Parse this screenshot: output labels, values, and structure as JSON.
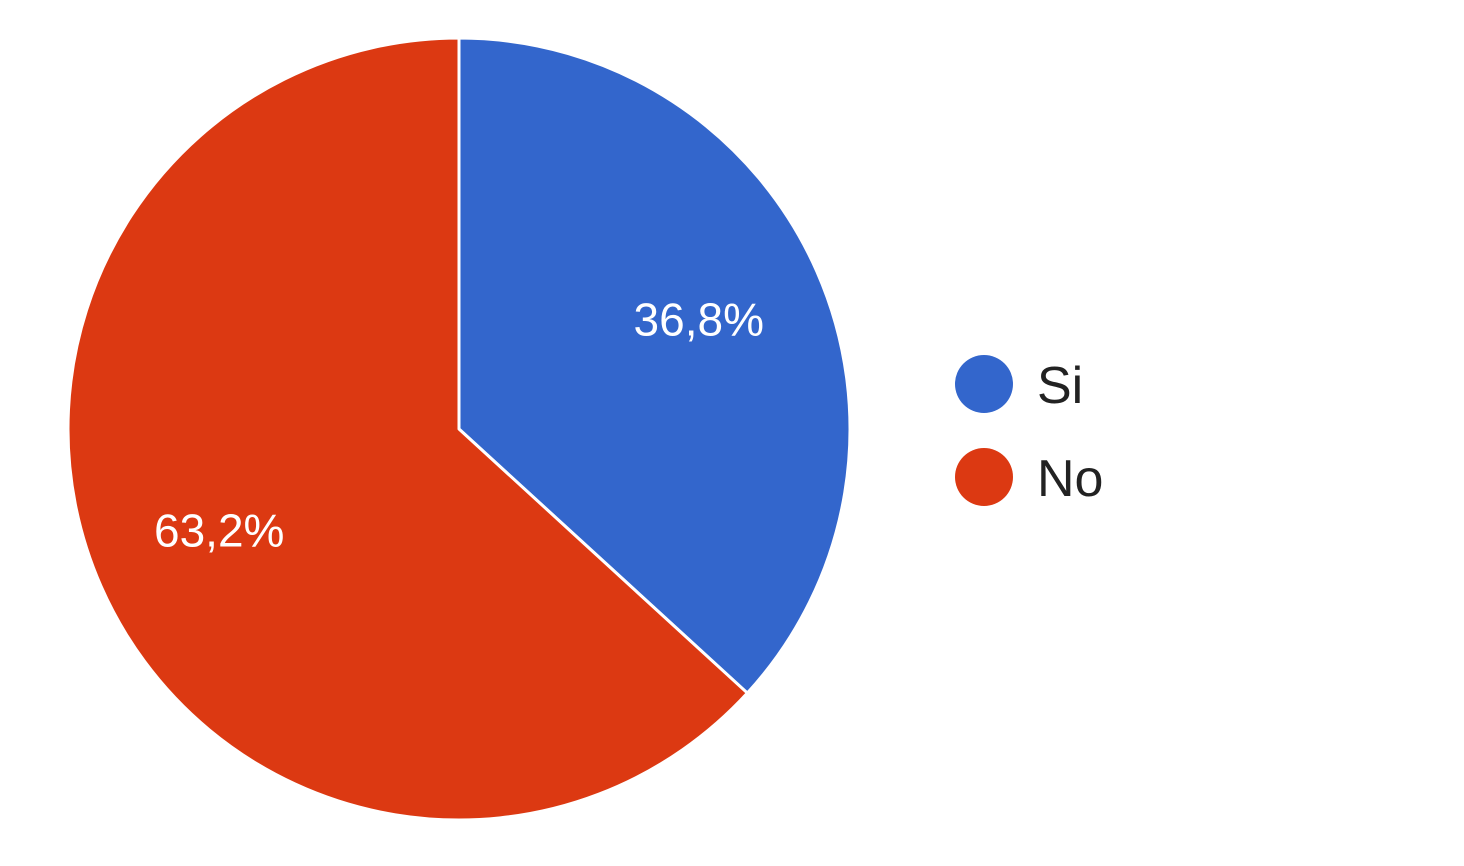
{
  "chart_data": {
    "type": "pie",
    "categories": [
      "Si",
      "No"
    ],
    "values": [
      36.8,
      63.2
    ],
    "value_labels": [
      "36,8%",
      "63,2%"
    ],
    "colors": [
      "#3366cc",
      "#dc3912"
    ],
    "start_angle_deg": 90,
    "direction": "clockwise",
    "legend": {
      "position": "right",
      "entries": [
        {
          "label": "Si",
          "color": "#3366cc"
        },
        {
          "label": "No",
          "color": "#dc3912"
        }
      ]
    }
  }
}
